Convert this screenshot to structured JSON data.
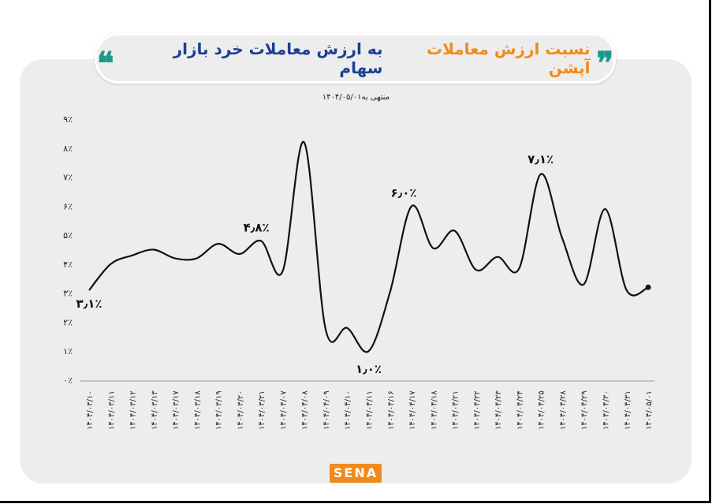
{
  "header": {
    "title_part1": "نسبت ارزش معاملات آپشن",
    "title_part2": "به ارزش معاملات خرد بازار سهام",
    "open_quote": "❞",
    "close_quote": "❝"
  },
  "logo": "SENA",
  "colors": {
    "orange": "#f08a1c",
    "blue": "#1c3f94",
    "teal": "#1a9a8c",
    "line": "#111111"
  },
  "chart_data": {
    "type": "line",
    "title": "نسبت ارزش معاملات آپشن به ارزش معاملات خرد بازار سهام",
    "subtitle": "منتهی به۱۴۰۴/۰۵/۰۱",
    "xlabel": "",
    "ylabel": "",
    "ylim": [
      0,
      9
    ],
    "yticks": [
      "۰٪",
      "۱٪",
      "۲٪",
      "۳٪",
      "۴٪",
      "۵٪",
      "۶٪",
      "۷٪",
      "۸٪",
      "۹٪"
    ],
    "categories": [
      "۱۴۰۴/۰۳/۱۰",
      "۱۴۰۴/۰۳/۱۱",
      "۱۴۰۴/۰۳/۱۲",
      "۱۴۰۴/۰۳/۱۳",
      "۱۴۰۴/۰۳/۱۷",
      "۱۴۰۴/۰۳/۱۸",
      "۱۴۰۴/۰۳/۱۹",
      "۱۴۰۴/۰۳/۲۰",
      "۱۴۰۴/۰۳/۲۱",
      "۱۴۰۴/۰۴/۰۷",
      "۱۴۰۴/۰۴/۰۸",
      "۱۴۰۴/۰۴/۰۹",
      "۱۴۰۴/۰۴/۱۰",
      "۱۴۰۴/۰۴/۱۱",
      "۱۴۰۴/۰۴/۱۶",
      "۱۴۰۴/۰۴/۱۷",
      "۱۴۰۴/۰۴/۱۸",
      "۱۴۰۴/۰۴/۲۱",
      "۱۴۰۴/۰۴/۲۲",
      "۱۴۰۴/۰۴/۲۳",
      "۱۴۰۴/۰۴/۲۴",
      "۱۴۰۴/۰۴/۲۵",
      "۱۴۰۴/۰۴/۲۸",
      "۱۴۰۴/۰۴/۲۹",
      "۱۴۰۴/۰۴/۳۰",
      "۱۴۰۴/۰۴/۳۱",
      "۱۴۰۴/۰۵/۰۱"
    ],
    "values": [
      3.1,
      4.0,
      4.3,
      4.5,
      4.2,
      4.2,
      4.7,
      4.35,
      4.8,
      3.75,
      8.2,
      1.75,
      1.8,
      1.0,
      3.05,
      6.0,
      4.55,
      5.15,
      3.8,
      4.25,
      3.85,
      7.1,
      4.9,
      3.3,
      5.9,
      3.1,
      3.2
    ],
    "annotations": [
      {
        "index": 0,
        "text": "۳٫۱٪"
      },
      {
        "index": 8,
        "text": "۴٫۸٪"
      },
      {
        "index": 13,
        "text": "۱٫۰٪"
      },
      {
        "index": 15,
        "text": "۶٫۰٪"
      },
      {
        "index": 21,
        "text": "۷٫۱٪"
      }
    ],
    "grid": false
  }
}
